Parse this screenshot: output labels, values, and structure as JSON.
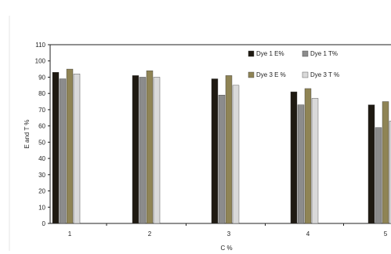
{
  "chart_data": {
    "type": "bar",
    "xlabel": "C %",
    "ylabel": "E and T %",
    "categories": [
      "1",
      "2",
      "3",
      "4",
      "5"
    ],
    "ylim": [
      0,
      110
    ],
    "yticks": [
      0,
      10,
      20,
      30,
      40,
      50,
      60,
      70,
      80,
      90,
      100,
      110
    ],
    "grid": false,
    "legend_position": "top-right",
    "series": [
      {
        "name": "Dye 1 E%",
        "color": "#1f1a12",
        "values": [
          93,
          91,
          89,
          81,
          73
        ]
      },
      {
        "name": "Dye 1 T%",
        "color": "#8c8c8c",
        "values": [
          89,
          90,
          79,
          73,
          59
        ]
      },
      {
        "name": "Dye 3 E %",
        "color": "#8f8455",
        "values": [
          95,
          94,
          91,
          83,
          75
        ]
      },
      {
        "name": "Dye 3 T %",
        "color": "#d9d9d9",
        "values": [
          92,
          90,
          85,
          77,
          63
        ]
      }
    ]
  }
}
